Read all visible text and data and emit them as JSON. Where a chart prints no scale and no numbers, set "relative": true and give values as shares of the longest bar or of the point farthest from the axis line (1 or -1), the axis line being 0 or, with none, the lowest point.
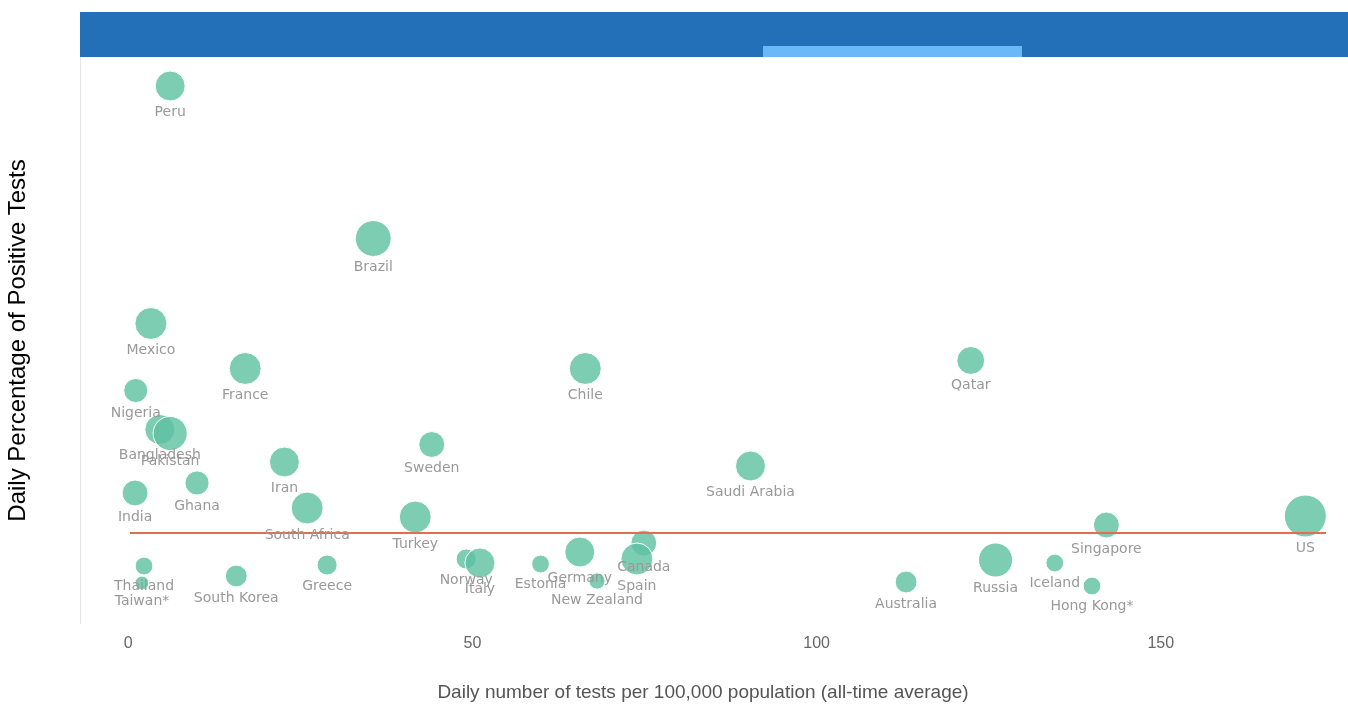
{
  "chart_data": {
    "type": "bubble",
    "xlabel": "Daily number of tests per 100,000 population (all-time average)",
    "ylabel": "Daily Percentage of Positive Tests",
    "relative": true,
    "xlim": [
      -7,
      174
    ],
    "xticks": [
      0,
      50,
      100,
      150
    ],
    "legend": false,
    "series": [
      {
        "color": "#5cc0a0",
        "x": [
          6.1,
          35.6,
          3.3,
          1.1,
          17,
          66.4,
          122.4,
          4.6,
          6.1,
          44.1,
          22.7,
          90.4,
          10,
          1,
          26,
          41.7,
          142.1,
          171,
          74.9,
          65.6,
          73.9,
          49.1,
          51.1,
          126,
          2.3,
          59.9,
          28.9,
          134.6,
          15.7,
          113,
          68.1,
          2,
          140
        ],
        "values": [
          1.0,
          0.695,
          0.525,
          0.391,
          0.435,
          0.435,
          0.451,
          0.313,
          0.305,
          0.283,
          0.248,
          0.24,
          0.206,
          0.186,
          0.156,
          0.138,
          0.122,
          0.14,
          0.086,
          0.068,
          0.054,
          0.054,
          0.046,
          0.052,
          0.04,
          0.044,
          0.042,
          0.046,
          0.02,
          0.008,
          0.01,
          0.006,
          0
        ],
        "sizes": [
          0.51,
          0.73,
          0.58,
          0.33,
          0.58,
          0.58,
          0.44,
          0.51,
          0.66,
          0.38,
          0.51,
          0.51,
          0.33,
          0.38,
          0.58,
          0.58,
          0.38,
          1.0,
          0.38,
          0.51,
          0.58,
          0.23,
          0.51,
          0.66,
          0.18,
          0.18,
          0.23,
          0.18,
          0.27,
          0.27,
          0.15,
          0.11,
          0.18
        ]
      }
    ],
    "ref_lines": [
      {
        "axis": "y",
        "value": 0.106,
        "color": "#e0704a"
      }
    ],
    "annotations": [
      {
        "text": "Peru",
        "x": 6.1,
        "y": 1.0
      },
      {
        "text": "Brazil",
        "x": 35.6,
        "y": 0.695
      },
      {
        "text": "Mexico",
        "x": 3.3,
        "y": 0.525
      },
      {
        "text": "Nigeria",
        "x": 1.1,
        "y": 0.391
      },
      {
        "text": "France",
        "x": 17,
        "y": 0.435
      },
      {
        "text": "Chile",
        "x": 66.4,
        "y": 0.435
      },
      {
        "text": "Qatar",
        "x": 122.4,
        "y": 0.451
      },
      {
        "text": "Bangladesh",
        "x": 4.6,
        "y": 0.313
      },
      {
        "text": "Pakistan",
        "x": 6.1,
        "y": 0.305
      },
      {
        "text": "Sweden",
        "x": 44.1,
        "y": 0.283
      },
      {
        "text": "Iran",
        "x": 22.7,
        "y": 0.248
      },
      {
        "text": "Saudi Arabia",
        "x": 90.4,
        "y": 0.24
      },
      {
        "text": "Ghana",
        "x": 10,
        "y": 0.206
      },
      {
        "text": "India",
        "x": 1,
        "y": 0.186
      },
      {
        "text": "South Africa",
        "x": 26,
        "y": 0.156
      },
      {
        "text": "Turkey",
        "x": 41.7,
        "y": 0.138
      },
      {
        "text": "Singapore",
        "x": 142.1,
        "y": 0.122
      },
      {
        "text": "US",
        "x": 171,
        "y": 0.14
      },
      {
        "text": "Canada",
        "x": 74.9,
        "y": 0.086
      },
      {
        "text": "Germany",
        "x": 65.6,
        "y": 0.068
      },
      {
        "text": "Spain",
        "x": 73.9,
        "y": 0.054
      },
      {
        "text": "Norway",
        "x": 49.1,
        "y": 0.054
      },
      {
        "text": "Italy",
        "x": 51.1,
        "y": 0.046
      },
      {
        "text": "Russia",
        "x": 126,
        "y": 0.052
      },
      {
        "text": "Thailand",
        "x": 2.3,
        "y": 0.04
      },
      {
        "text": "Estonia",
        "x": 59.9,
        "y": 0.044
      },
      {
        "text": "Greece",
        "x": 28.9,
        "y": 0.042
      },
      {
        "text": "Iceland",
        "x": 134.6,
        "y": 0.046
      },
      {
        "text": "South Korea",
        "x": 15.7,
        "y": 0.02
      },
      {
        "text": "Australia",
        "x": 113,
        "y": 0.008
      },
      {
        "text": "New Zealand",
        "x": 68.1,
        "y": 0.01
      },
      {
        "text": "Taiwan*",
        "x": 2,
        "y": 0.006
      },
      {
        "text": "Hong Kong*",
        "x": 140,
        "y": 0
      }
    ]
  }
}
